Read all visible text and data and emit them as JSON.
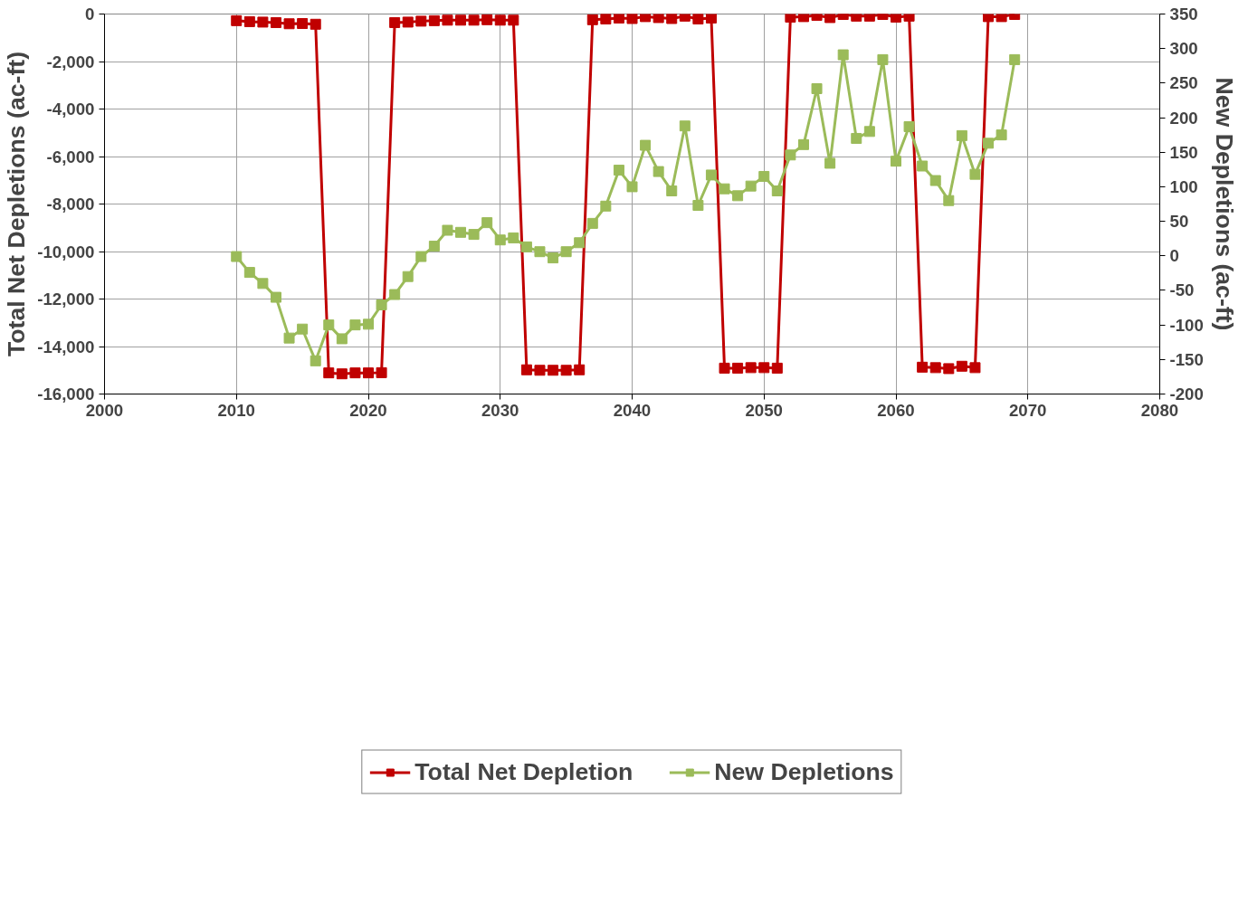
{
  "chart_data": {
    "type": "line",
    "ylabel": "Total Net Depletions (ac-ft)",
    "y2label": "New Depletions (ac-ft)",
    "x": [
      2010,
      2011,
      2012,
      2013,
      2014,
      2015,
      2016,
      2017,
      2018,
      2019,
      2020,
      2021,
      2022,
      2023,
      2024,
      2025,
      2026,
      2027,
      2028,
      2029,
      2030,
      2031,
      2032,
      2033,
      2034,
      2035,
      2036,
      2037,
      2038,
      2039,
      2040,
      2041,
      2042,
      2043,
      2044,
      2045,
      2046,
      2047,
      2048,
      2049,
      2050,
      2051,
      2052,
      2053,
      2054,
      2055,
      2056,
      2057,
      2058,
      2059,
      2060,
      2061,
      2062,
      2063,
      2064,
      2065,
      2066,
      2067,
      2068,
      2069
    ],
    "series": [
      {
        "name": "Total Net Depletion",
        "color": "#c00000",
        "values": [
          -280,
          -320,
          -340,
          -360,
          -410,
          -400,
          -430,
          -15110,
          -15150,
          -15110,
          -15110,
          -15100,
          -360,
          -340,
          -300,
          -280,
          -260,
          -260,
          -260,
          -240,
          -260,
          -260,
          -14980,
          -15000,
          -15000,
          -15000,
          -14980,
          -240,
          -210,
          -170,
          -190,
          -110,
          -150,
          -190,
          -90,
          -210,
          -170,
          -14910,
          -14910,
          -14890,
          -14890,
          -14910,
          -130,
          -110,
          -60,
          -150,
          -20,
          -90,
          -90,
          -20,
          -130,
          -90,
          -14870,
          -14890,
          -14930,
          -14830,
          -14890,
          -110,
          -110,
          -20
        ]
      },
      {
        "name": "New Depletions",
        "color": "#9bbb59",
        "axis": "y2",
        "values": [
          -1,
          -24,
          -40,
          -60,
          -119,
          -106,
          -152,
          -100,
          -120,
          -100,
          -99,
          -71,
          -56,
          -30,
          -1,
          14,
          37,
          34,
          31,
          48,
          23,
          26,
          13,
          6,
          -3,
          6,
          19,
          47,
          72,
          124,
          100,
          160,
          122,
          94,
          188,
          73,
          117,
          97,
          87,
          101,
          115,
          94,
          146,
          161,
          242,
          134,
          291,
          170,
          180,
          284,
          137,
          187,
          130,
          109,
          80,
          174,
          118,
          163,
          175,
          284
        ]
      }
    ],
    "xlim": [
      2000,
      2080
    ],
    "xticks": [
      2000,
      2010,
      2020,
      2030,
      2040,
      2050,
      2060,
      2070,
      2080
    ],
    "ylim": [
      -16000,
      0
    ],
    "yticks": [
      {
        "value": -16000,
        "label": "-16,000"
      },
      {
        "value": -14000,
        "label": "-14,000"
      },
      {
        "value": -12000,
        "label": "-12,000"
      },
      {
        "value": -10000,
        "label": "-10,000"
      },
      {
        "value": -8000,
        "label": "-8,000"
      },
      {
        "value": -6000,
        "label": "-6,000"
      },
      {
        "value": -4000,
        "label": "-4,000"
      },
      {
        "value": -2000,
        "label": "-2,000"
      },
      0
    ],
    "y2lim": [
      -200,
      350
    ],
    "y2ticks": [
      -200,
      -150,
      -100,
      -50,
      0,
      50,
      100,
      150,
      200,
      250,
      300,
      350
    ],
    "grid": true,
    "legend": "bottom",
    "marker": "square",
    "line_style": "solid"
  }
}
